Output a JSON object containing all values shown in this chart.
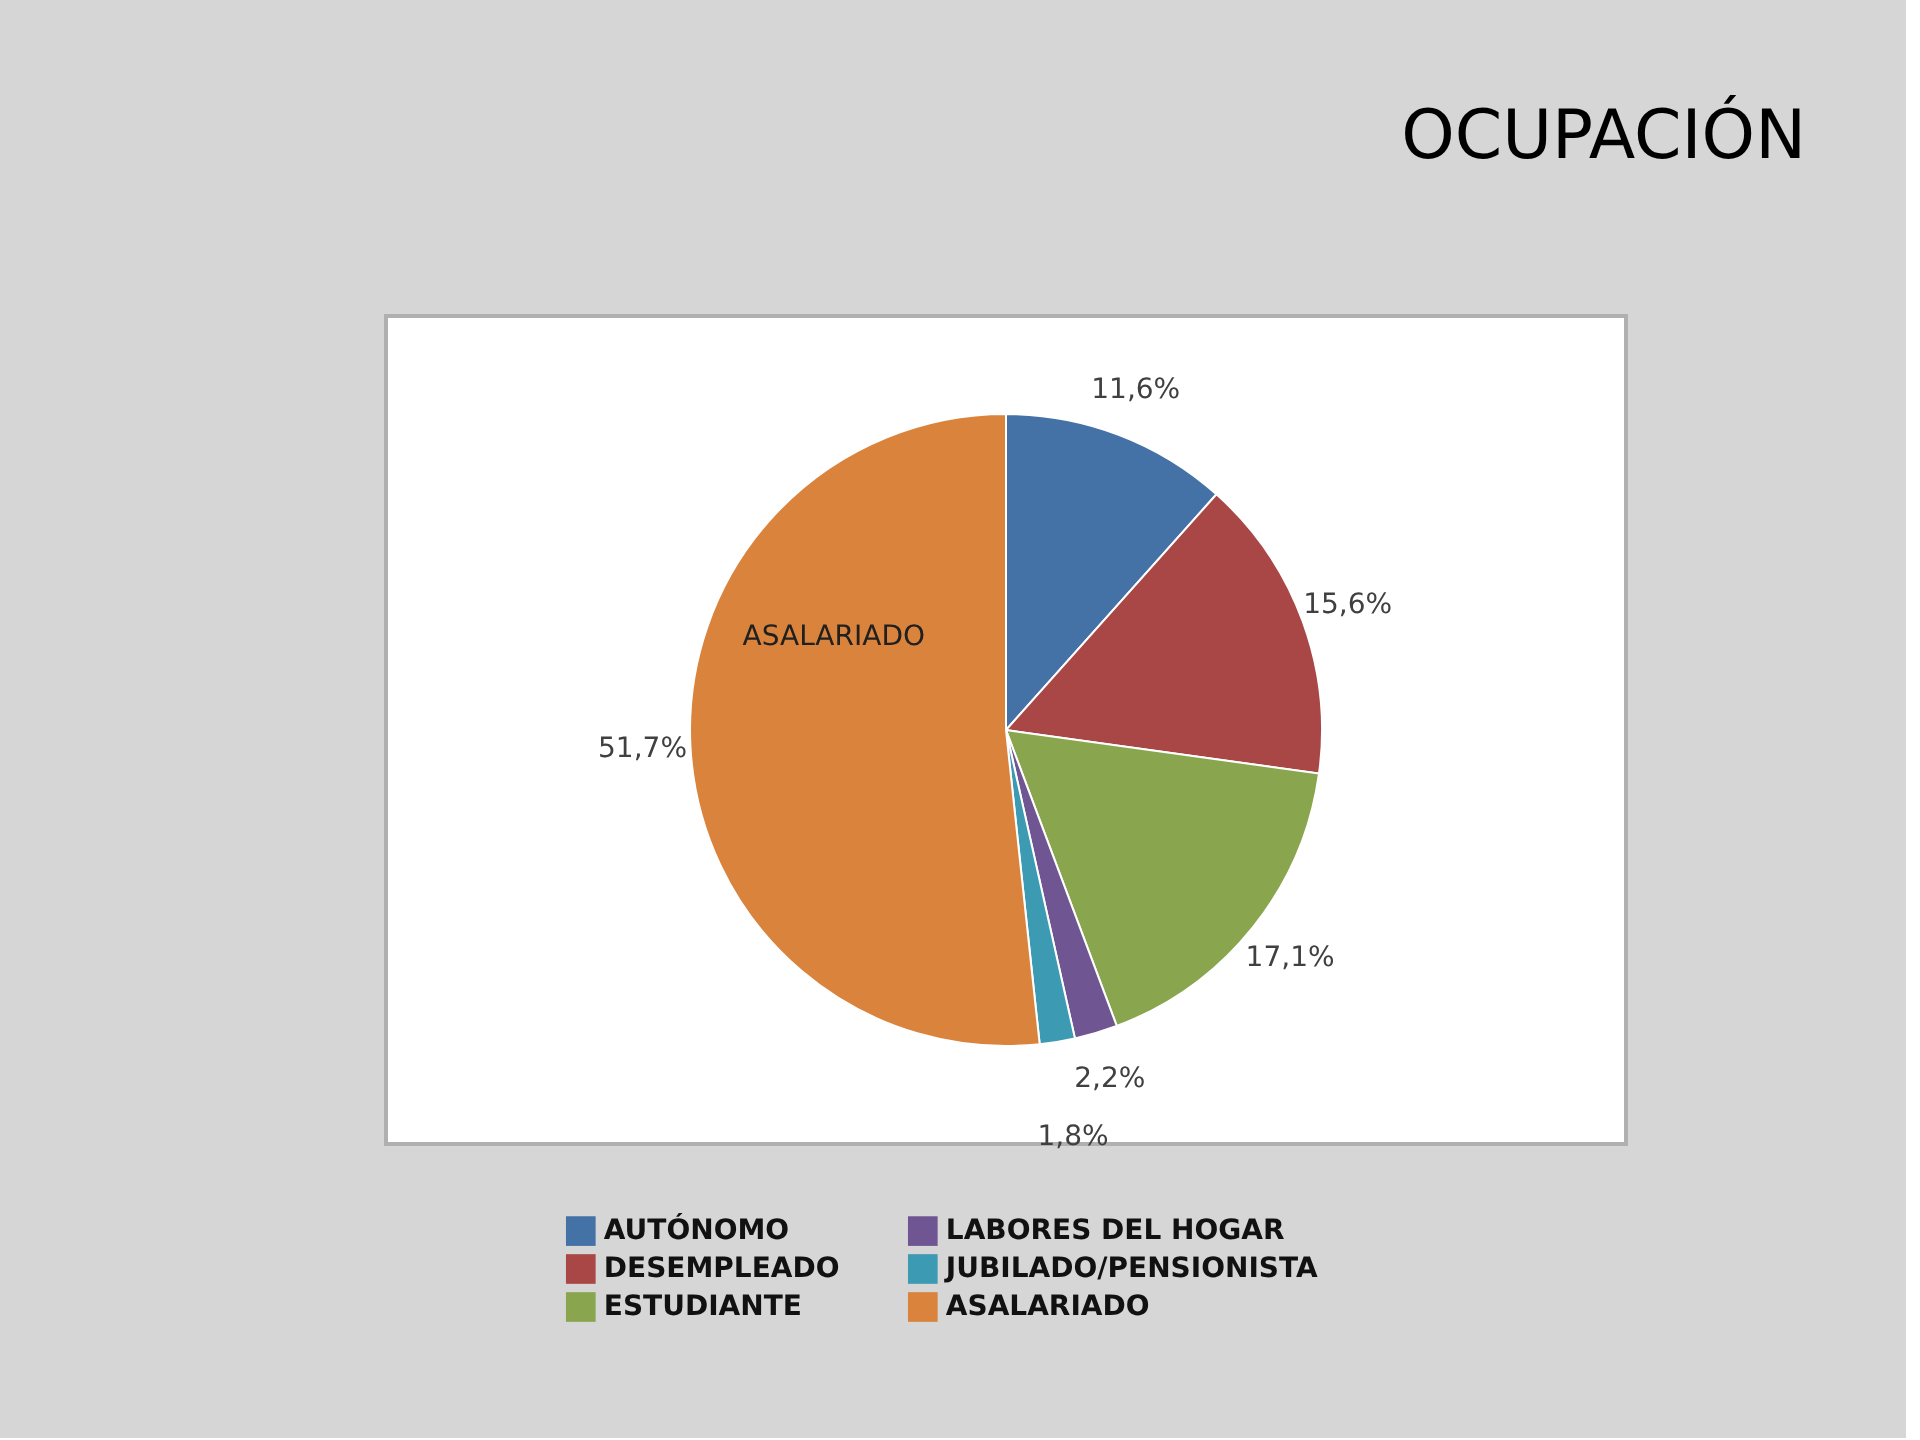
{
  "chart_data": {
    "type": "pie",
    "title": "OCUPACIÓN",
    "categories": [
      "AUTÓNOMO",
      "DESEMPLEADO",
      "ESTUDIANTE",
      "LABORES DEL HOGAR",
      "JUBILADO/PENSIONISTA",
      "ASALARIADO"
    ],
    "values": [
      11.6,
      15.6,
      17.1,
      2.2,
      1.8,
      51.7
    ],
    "colors": [
      "#4471a6",
      "#a84746",
      "#89a64e",
      "#6f5693",
      "#3c9ab3",
      "#da833c"
    ],
    "value_labels": [
      "11,6%",
      "15,6%",
      "17,1%",
      "2,2%",
      "1,8%",
      "51,7%"
    ],
    "annotations": [
      {
        "text": "ASALARIADO",
        "x": "ASALARIADO"
      }
    ],
    "legend": "bottom"
  }
}
